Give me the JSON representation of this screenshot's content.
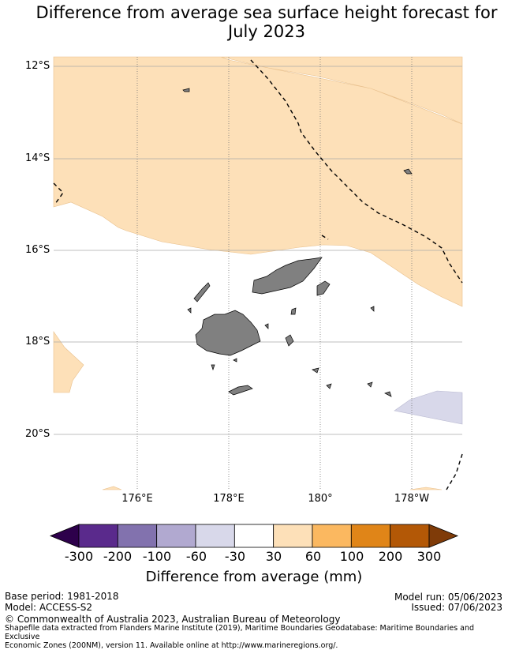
{
  "title_line1": "Difference from average sea surface height forecast for",
  "title_line2": "July 2023",
  "map": {
    "lat_labels": [
      "12°S",
      "14°S",
      "16°S",
      "18°S",
      "20°S"
    ],
    "lon_labels": [
      "176°E",
      "178°E",
      "180°",
      "178°W"
    ],
    "colors": {
      "land": "#808080",
      "positive_30_60": "#fde0b8",
      "negative_60_30": "#d8d8ea",
      "gridline": "#aaaaaa",
      "eez": "#000000"
    }
  },
  "colorbar": {
    "title": "Difference from average (mm)",
    "ticks": [
      "-300",
      "-200",
      "-100",
      "-60",
      "-30",
      "30",
      "60",
      "100",
      "200",
      "300"
    ],
    "colors": [
      "#2d004b",
      "#5a2a8c",
      "#8272ae",
      "#b1a9d0",
      "#d8d8ea",
      "#ffffff",
      "#fde0b8",
      "#fbb860",
      "#e08518",
      "#b35806",
      "#7f3b08"
    ]
  },
  "footer": {
    "base_period": "Base period: 1981-2018",
    "model": "Model: ACCESS-S2",
    "model_run": "Model run: 05/06/2023",
    "issued": "Issued: 07/06/2023",
    "copyright": "© Commonwealth of Australia 2023, Australian Bureau of Meteorology",
    "shapefile_line1": "Shapefile data extracted from Flanders Marine Institute (2019), Maritime Boundaries Geodatabase: Maritime Boundaries and Exclusive",
    "shapefile_line2": "Economic Zones (200NM), version 11. Available online at http://www.marineregions.org/."
  }
}
